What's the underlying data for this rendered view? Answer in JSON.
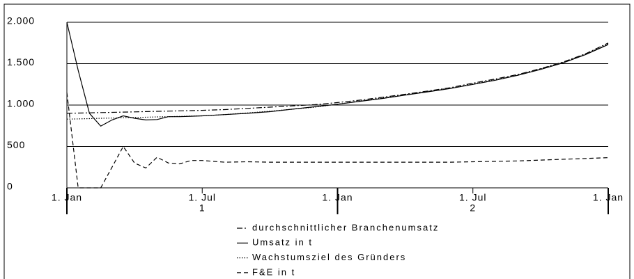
{
  "chart_data": {
    "type": "line",
    "x": [
      0,
      0.5,
      1,
      1.5,
      2,
      2.5,
      3,
      3.5,
      4,
      4.5,
      5,
      5.5,
      6,
      7,
      8,
      9,
      10,
      11,
      12,
      13,
      14,
      15,
      16,
      17,
      18,
      19,
      20,
      21,
      22,
      23,
      24
    ],
    "xlim": [
      0,
      24
    ],
    "xticks": [
      {
        "value": 0,
        "label": "1. Jan"
      },
      {
        "value": 6,
        "label": "1. Jul"
      },
      {
        "value": 12,
        "label": "1. Jan"
      },
      {
        "value": 18,
        "label": "1. Jul"
      },
      {
        "value": 24,
        "label": "1. Jan"
      }
    ],
    "xticks2": [
      {
        "value": 6,
        "label": "1"
      },
      {
        "value": 18,
        "label": "2"
      }
    ],
    "ylim": [
      0,
      2000
    ],
    "yticks": [
      0,
      {
        "value": 500,
        "label": "500"
      },
      {
        "value": 1000,
        "label": "1.000"
      },
      {
        "value": 1500,
        "label": "1.500"
      },
      {
        "value": 2000,
        "label": "2.000"
      }
    ],
    "grid": true,
    "series": [
      {
        "name": "durchschnittlicher Branchenumsatz",
        "color": "#000000",
        "style": "dashdot",
        "values": [
          900,
          903,
          906,
          909,
          912,
          915,
          918,
          921,
          924,
          927,
          930,
          933,
          936,
          945,
          960,
          975,
          990,
          1005,
          1030,
          1060,
          1095,
          1130,
          1170,
          1210,
          1265,
          1315,
          1370,
          1440,
          1520,
          1620,
          1750
        ]
      },
      {
        "name": "Umsatz in t",
        "color": "#000000",
        "style": "solid",
        "values": [
          2000,
          1420,
          900,
          745,
          820,
          870,
          840,
          820,
          825,
          860,
          860,
          865,
          870,
          885,
          900,
          920,
          950,
          980,
          1010,
          1045,
          1080,
          1120,
          1160,
          1200,
          1250,
          1300,
          1360,
          1430,
          1510,
          1610,
          1730
        ]
      },
      {
        "name": "Wachstumsziel des Gründers",
        "color": "#000000",
        "style": "dotted",
        "values": [
          830,
          833,
          836,
          840,
          843,
          847,
          850,
          853,
          857,
          860,
          863,
          867,
          870,
          885,
          905,
          925,
          950,
          975,
          1010,
          1050,
          1085,
          1125,
          1165,
          1205,
          1255,
          1305,
          1365,
          1435,
          1515,
          1615,
          1740
        ]
      },
      {
        "name": "F&E in t",
        "color": "#000000",
        "style": "dashed",
        "values": [
          1150,
          0,
          0,
          0,
          250,
          500,
          300,
          240,
          370,
          300,
          290,
          330,
          330,
          310,
          315,
          310,
          310,
          310,
          310,
          310,
          310,
          310,
          310,
          310,
          315,
          320,
          325,
          335,
          345,
          355,
          365
        ]
      }
    ]
  }
}
